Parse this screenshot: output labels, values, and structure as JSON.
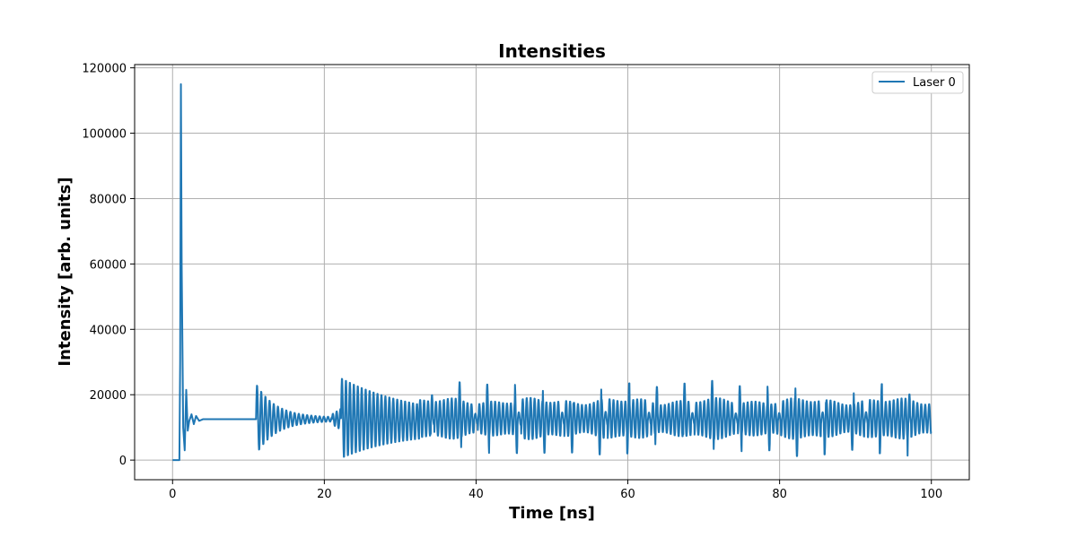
{
  "chart_data": {
    "type": "line",
    "title": "Intensities",
    "xlabel": "Time [ns]",
    "ylabel": "Intensity [arb. units]",
    "xlim": [
      -5,
      105
    ],
    "ylim": [
      -6000,
      121000
    ],
    "xticks": [
      0,
      20,
      40,
      60,
      80,
      100
    ],
    "yticks": [
      0,
      20000,
      40000,
      60000,
      80000,
      100000,
      120000
    ],
    "xtick_labels": [
      "0",
      "20",
      "40",
      "60",
      "80",
      "100"
    ],
    "ytick_labels": [
      "0",
      "20000",
      "40000",
      "60000",
      "80000",
      "100000",
      "120000"
    ],
    "grid": true,
    "legend_position": "top-right",
    "series": [
      {
        "name": "Laser 0",
        "color": "#1f77b4",
        "description_points": {
          "x": [
            0,
            0.9,
            1.0,
            1.1,
            1.2,
            1.4,
            1.6,
            1.8,
            2.0,
            2.2,
            2.5,
            2.8,
            3.1,
            3.5,
            4.0,
            5.0,
            11.0
          ],
          "y": [
            0,
            0,
            30000,
            115000,
            60000,
            10000,
            3000,
            21500,
            9000,
            12000,
            14000,
            11000,
            13500,
            12000,
            12500,
            12500,
            12500
          ]
        }
      }
    ]
  },
  "legend": {
    "label": "Laser 0"
  }
}
